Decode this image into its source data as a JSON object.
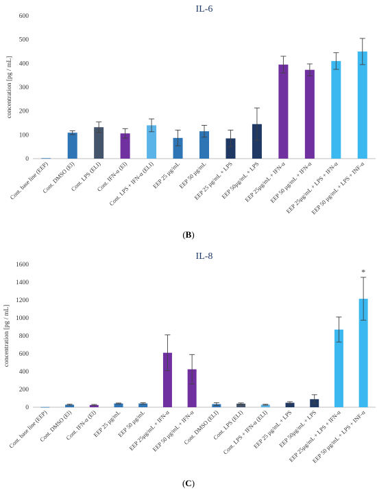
{
  "chart_data": [
    {
      "type": "bar",
      "title": "IL-6",
      "ylabel": "concentration [pg / mL]",
      "ylim": [
        0,
        600
      ],
      "yticks": [
        0,
        100,
        200,
        300,
        400,
        500,
        600
      ],
      "grid": false,
      "categories": [
        "Cont. base line (EEP)",
        "Cont. DMSO (El)",
        "Cont. LPS (ELI)",
        "Cont. IFN-α (El)",
        "Cont. LPS + IFN-α (ELI)",
        "EEP 25 µg/mL",
        "EEP 50 µg/mL",
        "EEP 25 µg/mL + LPS",
        "EEP 50µg/mL + LPS",
        "EEP 25µg/mL + IFN-α",
        "EEP 50 µg/mL + IFN-α",
        "EEP 25µg/mL + LPS + IFN-α",
        "EEP 50 µg/mL + LPS + INF-α"
      ],
      "values": [
        2,
        109,
        132,
        106,
        140,
        87,
        115,
        85,
        145,
        395,
        373,
        410,
        450
      ],
      "errors": [
        0,
        8,
        22,
        20,
        27,
        33,
        25,
        35,
        68,
        35,
        25,
        35,
        55
      ],
      "colors": [
        "#2e75b6",
        "#2e75b6",
        "#44546a",
        "#7030a0",
        "#5bb4e8",
        "#2e75b6",
        "#2e75b6",
        "#1f3864",
        "#1f3864",
        "#7030a0",
        "#7030a0",
        "#3cb8f0",
        "#3cb8f0"
      ],
      "annotations": []
    },
    {
      "type": "bar",
      "title": "IL-8",
      "ylabel": "concentration [pg / mL]",
      "ylim": [
        0,
        1600
      ],
      "yticks": [
        0,
        200,
        400,
        600,
        800,
        1000,
        1200,
        1400,
        1600
      ],
      "grid": false,
      "categories": [
        "Cont. base line (EEP)",
        "Cont. DMSO (El)",
        "Cont. IFN-α (El)",
        "EEP 25 µg/mL",
        "EEP 50 µg/mL",
        "EEP 25µg/mL + IFN-α",
        "EEP 50 µg/mL + IFN-α",
        "Cont. DMSO (ELI)",
        "Cont. LPS (ELI)",
        "Cont. LPS + IFN-α (ELI)",
        "EEP 25 µg/mL + LPS",
        "EEP 50µg/mL + LPS",
        "EEP 25µg/mL + LPS + IFN-α",
        "EEP 50 µg/mL + LPS + INF-α"
      ],
      "values": [
        2,
        28,
        25,
        42,
        42,
        610,
        425,
        35,
        40,
        28,
        50,
        90,
        870,
        1215
      ],
      "errors": [
        0,
        6,
        6,
        5,
        8,
        200,
        165,
        15,
        8,
        5,
        12,
        50,
        140,
        240
      ],
      "colors": [
        "#2e75b6",
        "#2e75b6",
        "#7030a0",
        "#2e75b6",
        "#2e75b6",
        "#7030a0",
        "#7030a0",
        "#2e75b6",
        "#44546a",
        "#5bb4e8",
        "#1f3864",
        "#1f3864",
        "#3cb8f0",
        "#3cb8f0"
      ],
      "annotations": [
        {
          "category_index": 13,
          "text": "*"
        }
      ]
    }
  ],
  "panels": {
    "b_label": "B",
    "c_label": "C"
  }
}
